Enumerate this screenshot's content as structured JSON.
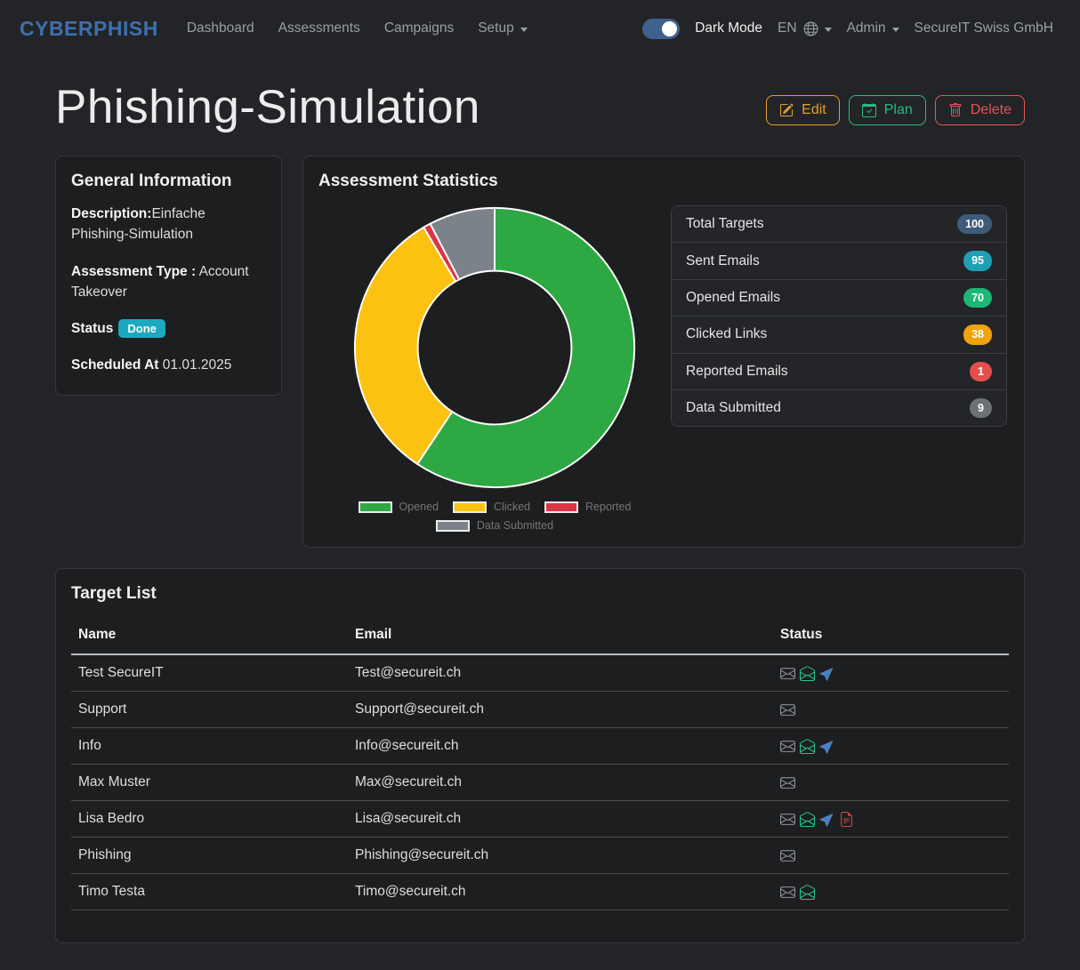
{
  "navbar": {
    "brand": "CYBERPHISH",
    "items": [
      {
        "label": "Dashboard",
        "caret": false
      },
      {
        "label": "Assessments",
        "caret": false
      },
      {
        "label": "Campaigns",
        "caret": false
      },
      {
        "label": "Setup",
        "caret": true
      }
    ],
    "dark_mode_label": "Dark Mode",
    "dark_mode_on": true,
    "language": "EN",
    "admin_label": "Admin",
    "tenant": "SecureIT Swiss GmbH"
  },
  "header": {
    "title": "Phishing-Simulation",
    "buttons": [
      {
        "label": "Edit",
        "icon": "pencil-square",
        "color": "#e3a02d"
      },
      {
        "label": "Plan",
        "icon": "calendar-check",
        "color": "#2abb7f"
      },
      {
        "label": "Delete",
        "icon": "trash",
        "color": "#e45656"
      }
    ]
  },
  "general_info": {
    "title": "General Information",
    "description_label": "Description:",
    "description": "Einfache Phishing-Simulation",
    "type_label": "Assessment Type :",
    "type": "Account Takeover",
    "status_label": "Status",
    "status": "Done",
    "status_color": "#1ca9bf",
    "scheduled_label": "Scheduled At",
    "scheduled": "01.01.2025"
  },
  "statistics": {
    "title": "Assessment Statistics",
    "stats": [
      {
        "label": "Total Targets",
        "value": "100",
        "color": "#3e5c7a"
      },
      {
        "label": "Sent Emails",
        "value": "95",
        "color": "#1e9fb5"
      },
      {
        "label": "Opened Emails",
        "value": "70",
        "color": "#1cb876"
      },
      {
        "label": "Clicked Links",
        "value": "38",
        "color": "#f0a30a"
      },
      {
        "label": "Reported Emails",
        "value": "1",
        "color": "#e34e4e"
      },
      {
        "label": "Data Submitted",
        "value": "9",
        "color": "#6d7074"
      }
    ]
  },
  "chart_data": {
    "type": "pie",
    "subtype": "donut",
    "labels": [
      "Opened",
      "Clicked",
      "Reported",
      "Data Submitted"
    ],
    "values": [
      70,
      38,
      1,
      9
    ],
    "colors": [
      "#2ea843",
      "#fcc211",
      "#dc3545",
      "#7b828a"
    ],
    "legend_position": "bottom",
    "cutout_ratio": 0.55,
    "start_angle_deg": 0,
    "direction": "clockwise",
    "title": ""
  },
  "target_list": {
    "title": "Target List",
    "columns": [
      "Name",
      "Email",
      "Status"
    ],
    "rows": [
      {
        "name": "Test SecureIT",
        "email": "Test@secureit.ch",
        "status": [
          "sent",
          "opened",
          "clicked"
        ]
      },
      {
        "name": "Support",
        "email": "Support@secureit.ch",
        "status": [
          "sent"
        ]
      },
      {
        "name": "Info",
        "email": "Info@secureit.ch",
        "status": [
          "sent",
          "opened",
          "clicked"
        ]
      },
      {
        "name": "Max Muster",
        "email": "Max@secureit.ch",
        "status": [
          "sent"
        ]
      },
      {
        "name": "Lisa Bedro",
        "email": "Lisa@secureit.ch",
        "status": [
          "sent",
          "opened",
          "clicked",
          "submitted"
        ]
      },
      {
        "name": "Phishing",
        "email": "Phishing@secureit.ch",
        "status": [
          "sent"
        ]
      },
      {
        "name": "Timo Testa",
        "email": "Timo@secureit.ch",
        "status": [
          "sent",
          "opened"
        ]
      }
    ]
  },
  "status_icons": {
    "sent": {
      "icon": "envelope",
      "color": "#8d9196"
    },
    "opened": {
      "icon": "envelope-open",
      "color": "#26c28a"
    },
    "clicked": {
      "icon": "cursor",
      "color": "#4a80c2"
    },
    "submitted": {
      "icon": "file-earmark-text",
      "color": "#d84444"
    }
  }
}
